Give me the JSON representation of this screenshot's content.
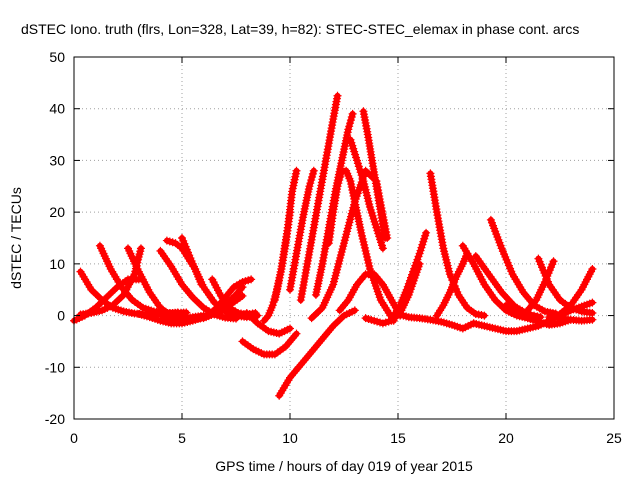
{
  "chart_data": {
    "type": "scatter",
    "title": "dSTEC Iono. truth (flrs, Lon=328, Lat=39, h=82): STEC-STEC_elemax in phase cont. arcs",
    "xlabel": "GPS time / hours of day 019 of year 2015",
    "ylabel": "dSTEC  / TECUs",
    "xlim": [
      0,
      25
    ],
    "ylim": [
      -20,
      50
    ],
    "xticks": [
      0,
      5,
      10,
      15,
      20,
      25
    ],
    "yticks": [
      -20,
      -10,
      0,
      10,
      20,
      30,
      40,
      50
    ],
    "grid": true,
    "marker": "plus",
    "color": "#ff0000",
    "series": [
      {
        "x": [
          0.0,
          0.5,
          1.0,
          1.5,
          2.0,
          2.5,
          3.0
        ],
        "y": [
          -1,
          0,
          1.5,
          3.5,
          5.5,
          7,
          7
        ]
      },
      {
        "x": [
          0.3,
          0.8,
          1.3,
          1.8,
          2.3,
          2.8,
          3.3,
          3.8,
          4.3,
          4.8
        ],
        "y": [
          8.5,
          5,
          3,
          1.5,
          0.8,
          0.4,
          0.2,
          0.2,
          0.4,
          0.6
        ]
      },
      {
        "x": [
          1.2,
          1.7,
          2.2,
          2.7,
          3.2,
          3.7,
          4.2,
          4.7,
          5.2
        ],
        "y": [
          13.5,
          9,
          5.5,
          3,
          1.5,
          0.8,
          0.5,
          0.5,
          0.6
        ]
      },
      {
        "x": [
          0.3,
          0.8,
          1.3,
          1.8,
          2.3,
          2.8,
          3.1
        ],
        "y": [
          0.2,
          0.5,
          1,
          2,
          4,
          8,
          13
        ]
      },
      {
        "x": [
          2.5,
          3.0,
          3.5,
          4.0,
          4.5,
          5.0,
          5.5,
          6.0
        ],
        "y": [
          13,
          8.5,
          4.5,
          1.5,
          0,
          -0.5,
          -0.3,
          0
        ]
      },
      {
        "x": [
          3.0,
          3.5,
          4.0,
          4.5,
          5.0,
          5.5,
          6.0,
          6.5,
          7.0,
          7.5,
          7.8
        ],
        "y": [
          0.3,
          -0.3,
          -1,
          -1.5,
          -1.5,
          -1,
          -0.3,
          0.5,
          2,
          4,
          5.5
        ]
      },
      {
        "x": [
          4.0,
          4.5,
          5.0,
          5.5,
          6.0,
          6.5,
          7.0,
          7.5
        ],
        "y": [
          12.5,
          9.5,
          6,
          3.5,
          1.5,
          0.2,
          -0.4,
          -0.6
        ]
      },
      {
        "x": [
          4.3,
          4.7,
          5.0,
          5.3,
          5.6,
          5.9
        ],
        "y": [
          14.5,
          14,
          13,
          11,
          9,
          6
        ]
      },
      {
        "x": [
          4.2,
          4.8,
          5.4,
          6.0,
          6.6,
          7.2,
          7.8
        ],
        "y": [
          -0.3,
          -0.5,
          -0.8,
          -0.5,
          0.5,
          2,
          3.8
        ]
      },
      {
        "x": [
          5.0,
          5.5,
          6.0,
          6.5,
          7.0,
          7.5,
          8.0,
          8.5
        ],
        "y": [
          15,
          10,
          5.5,
          2.5,
          0.8,
          0,
          -0.3,
          0
        ]
      },
      {
        "x": [
          5.8,
          6.2,
          6.6,
          7.0,
          7.4,
          7.8,
          8.2
        ],
        "y": [
          -0.5,
          0,
          1.5,
          3.5,
          5.5,
          6.5,
          7
        ]
      },
      {
        "x": [
          6.4,
          6.8,
          7.2,
          7.6,
          8.0,
          8.4
        ],
        "y": [
          7,
          3.8,
          1.5,
          0.5,
          0.2,
          0.5
        ]
      },
      {
        "x": [
          7.8,
          8.3,
          8.8,
          9.3,
          9.8,
          10.3
        ],
        "y": [
          -5,
          -6.5,
          -7.5,
          -7.5,
          -6,
          -3.5
        ]
      },
      {
        "x": [
          8.0,
          8.5,
          9.0,
          9.5,
          10.0
        ],
        "y": [
          0.5,
          -1.5,
          -3,
          -3.5,
          -2.5
        ]
      },
      {
        "x": [
          8.8,
          9.0,
          9.2,
          9.4,
          9.6,
          9.8,
          10.0
        ],
        "y": [
          -1,
          0,
          2,
          5,
          9,
          14,
          20
        ]
      },
      {
        "x": [
          9.3,
          9.6,
          9.9,
          10.1,
          10.3
        ],
        "y": [
          3,
          9,
          17,
          24,
          28
        ]
      },
      {
        "x": [
          9.5,
          10.0,
          10.5,
          11.0,
          11.5,
          12.0,
          12.5,
          13.0
        ],
        "y": [
          -15.5,
          -12,
          -9.5,
          -7,
          -4.5,
          -2,
          0,
          1
        ]
      },
      {
        "x": [
          10.0,
          10.3,
          10.6,
          10.9,
          11.1
        ],
        "y": [
          5,
          12,
          19,
          25,
          28
        ]
      },
      {
        "x": [
          10.5,
          10.8,
          11.1,
          11.4,
          11.7,
          12.0,
          12.2
        ],
        "y": [
          3,
          10,
          17,
          24,
          31,
          38,
          42.5
        ]
      },
      {
        "x": [
          11.2,
          11.5,
          11.8,
          12.1,
          12.4,
          12.7,
          12.9
        ],
        "y": [
          4,
          10,
          17,
          24,
          30,
          36,
          39
        ]
      },
      {
        "x": [
          11.0,
          11.5,
          12.0,
          12.5,
          13.0,
          13.5,
          14.0,
          14.5
        ],
        "y": [
          -0.5,
          1.5,
          6,
          14,
          22,
          28,
          26,
          15
        ]
      },
      {
        "x": [
          11.8,
          12.0,
          12.2,
          12.4,
          12.6,
          12.8,
          13.0,
          13.3,
          13.7,
          14.2,
          14.8
        ],
        "y": [
          14,
          20,
          25,
          28,
          28,
          26,
          22,
          16,
          9,
          3,
          -1
        ]
      },
      {
        "x": [
          12.8,
          13.1,
          13.4,
          13.7,
          14.0,
          14.3
        ],
        "y": [
          34,
          30,
          26,
          21,
          17,
          13
        ]
      },
      {
        "x": [
          13.4,
          13.6,
          13.8,
          14.0,
          14.2,
          14.4
        ],
        "y": [
          39.5,
          35,
          30,
          25,
          20,
          15
        ]
      },
      {
        "x": [
          12.3,
          12.7,
          13.1,
          13.5,
          13.9,
          14.3,
          14.7,
          15.1
        ],
        "y": [
          1,
          3,
          6,
          8,
          8,
          6,
          3,
          0
        ]
      },
      {
        "x": [
          13.5,
          13.9,
          14.3,
          14.7,
          15.1,
          15.5,
          16.0
        ],
        "y": [
          -0.5,
          -1,
          -1.5,
          -1,
          0.5,
          4,
          10
        ]
      },
      {
        "x": [
          14.8,
          15.1,
          15.4,
          15.7,
          16.0,
          16.3
        ],
        "y": [
          0,
          2,
          5,
          8.5,
          12,
          16
        ]
      },
      {
        "x": [
          16.5,
          16.8,
          17.1,
          17.4,
          17.8,
          18.2,
          18.6,
          19.0
        ],
        "y": [
          27.5,
          20,
          13,
          8,
          4,
          1.5,
          0.3,
          0
        ]
      },
      {
        "x": [
          15.0,
          15.5,
          16.0,
          16.5,
          17.0,
          17.5,
          18.0,
          18.5
        ],
        "y": [
          0.3,
          -0.3,
          -0.5,
          -0.8,
          -1.2,
          -1.8,
          -2.5,
          -1.5
        ]
      },
      {
        "x": [
          16.8,
          17.1,
          17.4,
          17.7,
          18.0,
          18.2
        ],
        "y": [
          0,
          2,
          4.5,
          7.5,
          10,
          12
        ]
      },
      {
        "x": [
          18.0,
          18.5,
          19.0,
          19.5,
          20.0,
          20.5,
          21.0
        ],
        "y": [
          13.5,
          10,
          6,
          3,
          1,
          0,
          -0.5
        ]
      },
      {
        "x": [
          18.6,
          19.2,
          19.8,
          20.4,
          21.0,
          21.6
        ],
        "y": [
          11.5,
          8,
          4.5,
          1.8,
          0.3,
          -0.3
        ]
      },
      {
        "x": [
          19.3,
          19.8,
          20.3,
          20.8,
          21.3,
          21.8,
          22.3
        ],
        "y": [
          18.5,
          13,
          8,
          4.5,
          2,
          0.8,
          0.4
        ]
      },
      {
        "x": [
          20.0,
          20.5,
          21.0,
          21.5,
          22.0,
          22.5,
          23.0
        ],
        "y": [
          2,
          0.5,
          -0.5,
          -1.2,
          -1.8,
          -1.5,
          -0.8
        ]
      },
      {
        "x": [
          21.5,
          22.0,
          22.5,
          23.0,
          23.5,
          24.0
        ],
        "y": [
          11,
          6,
          3,
          1.5,
          0.8,
          0.5
        ]
      },
      {
        "x": [
          21.0,
          21.4,
          21.8,
          22.2
        ],
        "y": [
          1,
          3,
          6.5,
          10.5
        ]
      },
      {
        "x": [
          22.5,
          23.0,
          23.5,
          24.0
        ],
        "y": [
          0.3,
          2,
          5,
          9
        ]
      },
      {
        "x": [
          18.5,
          19.0,
          19.5,
          20.0,
          20.5,
          21.0,
          21.5,
          22.0,
          22.5,
          23.0,
          24.0
        ],
        "y": [
          -1.5,
          -2,
          -2.5,
          -3,
          -3,
          -2.5,
          -2,
          -1,
          0,
          1,
          2.5
        ]
      },
      {
        "x": [
          22.0,
          22.5,
          23.0,
          23.5,
          24.0
        ],
        "y": [
          -0.3,
          -0.5,
          -0.8,
          -1,
          -0.8
        ]
      }
    ]
  }
}
